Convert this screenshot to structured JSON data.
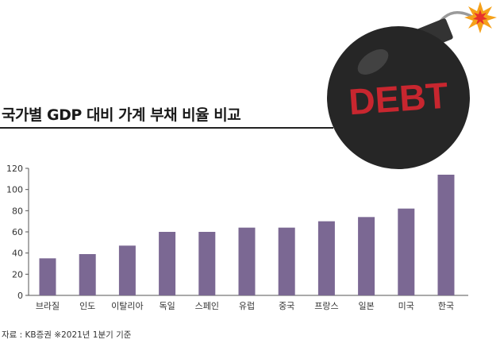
{
  "title": "국가별 GDP 대비 가계 부채 비율 비교",
  "source": "자료 : KB증권  ※2021년 1분기 기준",
  "bomb": {
    "label": "DEBT",
    "body_color": "#262626",
    "label_color": "#c8262f",
    "spark_color": "#f5a11a"
  },
  "chart_data": {
    "type": "bar",
    "title": "국가별 GDP 대비 가계 부채 비율 비교",
    "xlabel": "",
    "ylabel": "",
    "categories": [
      "브라질",
      "인도",
      "이탈리아",
      "독일",
      "스페인",
      "유럽",
      "중국",
      "프랑스",
      "일본",
      "미국",
      "한국"
    ],
    "values": [
      35,
      39,
      47,
      60,
      60,
      64,
      64,
      70,
      74,
      82,
      114
    ],
    "ylim": [
      0,
      120
    ],
    "yticks": [
      0,
      20,
      40,
      60,
      80,
      100,
      120
    ],
    "grid": false,
    "bar_color": "#7b6893"
  }
}
